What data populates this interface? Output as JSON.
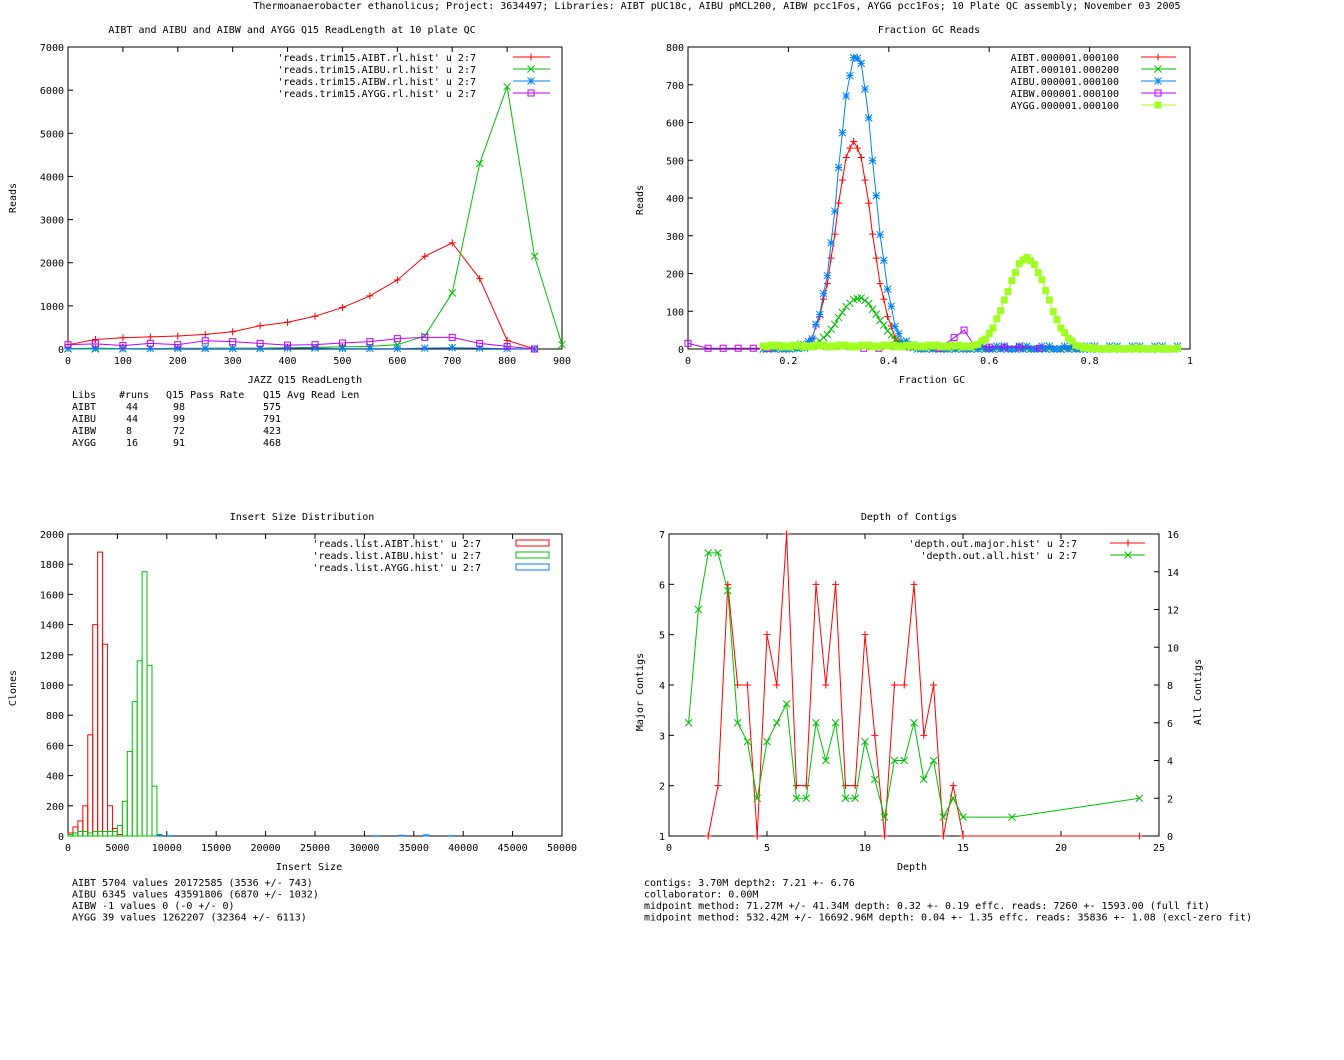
{
  "page": {
    "title": "Thermoanaerobacter ethanolicus; Project: 3634497; Libraries: AIBT pUC18c, AIBU pMCL200, AIBW pcc1Fos, AYGG pcc1Fos; 10 Plate QC assembly; November 03 2005"
  },
  "colors": {
    "red": "#ff0000",
    "green": "#00c000",
    "blue": "#0080ff",
    "magenta": "#c000ff",
    "lime": "#a0ff20"
  },
  "chart_data": [
    {
      "type": "line",
      "title": "AIBT and AIBU and AIBW and AYGG Q15 ReadLength at 10 plate QC",
      "xlabel": "JAZZ Q15 ReadLength",
      "ylabel": "Reads",
      "xlim": [
        0,
        900
      ],
      "ylim": [
        0,
        7000
      ],
      "xticks": [
        "0",
        "100",
        "200",
        "300",
        "400",
        "500",
        "600",
        "700",
        "800",
        "900"
      ],
      "yticks": [
        "0",
        "1000",
        "2000",
        "3000",
        "4000",
        "5000",
        "6000",
        "7000"
      ],
      "series": [
        {
          "name": "'reads.trim15.AIBT.rl.hist' u 2:7",
          "color": "#ff0000",
          "marker": "plus",
          "x": [
            0,
            50,
            100,
            150,
            200,
            250,
            300,
            350,
            400,
            450,
            500,
            550,
            600,
            650,
            700,
            750,
            800,
            850
          ],
          "y": [
            100,
            220,
            260,
            280,
            300,
            340,
            400,
            540,
            620,
            760,
            960,
            1230,
            1600,
            2150,
            2460,
            1630,
            200,
            0
          ]
        },
        {
          "name": "'reads.trim15.AIBU.rl.hist' u 2:7",
          "color": "#00c000",
          "marker": "cross",
          "x": [
            0,
            50,
            100,
            150,
            200,
            250,
            300,
            350,
            400,
            450,
            500,
            550,
            600,
            650,
            700,
            750,
            800,
            850,
            900
          ],
          "y": [
            0,
            0,
            0,
            10,
            10,
            20,
            20,
            20,
            30,
            40,
            50,
            60,
            100,
            300,
            1300,
            4300,
            6080,
            2150,
            100
          ]
        },
        {
          "name": "'reads.trim15.AIBW.rl.hist' u 2:7",
          "color": "#0080ff",
          "marker": "star",
          "x": [
            0,
            50,
            100,
            150,
            200,
            250,
            300,
            350,
            400,
            450,
            500,
            550,
            600,
            650,
            700,
            750,
            800,
            850
          ],
          "y": [
            10,
            20,
            10,
            10,
            20,
            10,
            10,
            10,
            20,
            20,
            10,
            10,
            10,
            20,
            30,
            20,
            10,
            0
          ]
        },
        {
          "name": "'reads.trim15.AYGG.rl.hist' u 2:7",
          "color": "#c000ff",
          "marker": "square",
          "x": [
            0,
            50,
            100,
            150,
            200,
            250,
            300,
            350,
            400,
            450,
            500,
            550,
            600,
            650,
            700,
            750,
            800,
            850
          ],
          "y": [
            100,
            120,
            80,
            130,
            100,
            190,
            170,
            130,
            90,
            100,
            140,
            170,
            240,
            270,
            270,
            130,
            60,
            0
          ]
        }
      ],
      "table": {
        "header": [
          "Libs",
          "#runs",
          "Q15 Pass Rate",
          "Q15 Avg Read Len"
        ],
        "rows": [
          [
            "AIBT",
            "44",
            "98",
            "575"
          ],
          [
            "AIBU",
            "44",
            "99",
            "791"
          ],
          [
            "AIBW",
            "8",
            "72",
            "423"
          ],
          [
            "AYGG",
            "16",
            "91",
            "468"
          ]
        ]
      }
    },
    {
      "type": "scatter",
      "title": "Fraction GC Reads",
      "xlabel": "Fraction GC",
      "ylabel": "Reads",
      "xlim": [
        0,
        1
      ],
      "ylim": [
        0,
        800
      ],
      "xticks": [
        "0",
        "0.2",
        "0.4",
        "0.6",
        "0.8",
        "1"
      ],
      "yticks": [
        "0",
        "100",
        "200",
        "300",
        "400",
        "500",
        "600",
        "700",
        "800"
      ],
      "series": [
        {
          "name": "AIBT.000001.000100",
          "color": "#ff0000",
          "marker": "plus",
          "mode": "bell",
          "mu": 0.33,
          "sigma": 0.035,
          "amp": 550
        },
        {
          "name": "AIBT.000101.000200",
          "color": "#00c000",
          "marker": "cross",
          "mode": "bell",
          "mu": 0.34,
          "sigma": 0.04,
          "amp": 135
        },
        {
          "name": "AIBU.000001.000100",
          "color": "#0080ff",
          "marker": "star",
          "mode": "bell",
          "mu": 0.335,
          "sigma": 0.035,
          "amp": 780
        },
        {
          "name": "AIBW.000001.000100",
          "color": "#c000ff",
          "marker": "square",
          "mode": "points",
          "x": [
            0,
            0.04,
            0.07,
            0.1,
            0.13,
            0.16,
            0.35,
            0.38,
            0.5,
            0.53,
            0.55,
            0.57,
            0.6,
            0.63,
            0.66,
            0.7
          ],
          "y": [
            15,
            2,
            2,
            2,
            2,
            2,
            2,
            2,
            2,
            30,
            50,
            10,
            5,
            5,
            5,
            2
          ]
        },
        {
          "name": "AYGG.000001.000100",
          "color": "#a0ff20",
          "marker": "filledsquare",
          "mode": "bell",
          "mu": 0.675,
          "sigma": 0.04,
          "amp": 240,
          "base": 8
        }
      ]
    },
    {
      "type": "bar",
      "title": "Insert Size Distribution",
      "xlabel": "Insert Size",
      "ylabel": "Clones",
      "xlim": [
        0,
        50000
      ],
      "ylim": [
        0,
        2000
      ],
      "xticks": [
        "0",
        "5000",
        "10000",
        "15000",
        "20000",
        "25000",
        "30000",
        "35000",
        "40000",
        "45000",
        "50000"
      ],
      "yticks": [
        "0",
        "200",
        "400",
        "600",
        "800",
        "1000",
        "1200",
        "1400",
        "1600",
        "1800",
        "2000"
      ],
      "bin_width": 500,
      "series": [
        {
          "name": "'reads.list.AIBT.hist' u 2:7",
          "color": "#ff0000",
          "x": [
            0,
            500,
            1000,
            1500,
            2000,
            2500,
            3000,
            3500,
            4000,
            4500,
            5000
          ],
          "y": [
            20,
            60,
            100,
            200,
            670,
            1400,
            1880,
            1270,
            200,
            50,
            10
          ]
        },
        {
          "name": "'reads.list.AIBU.hist' u 2:7",
          "color": "#00c000",
          "x": [
            0,
            500,
            1000,
            1500,
            2000,
            2500,
            3000,
            3500,
            4000,
            4500,
            5000,
            5500,
            6000,
            6500,
            7000,
            7500,
            8000,
            8500,
            9000
          ],
          "y": [
            10,
            20,
            30,
            30,
            20,
            30,
            30,
            30,
            30,
            30,
            70,
            230,
            560,
            890,
            1160,
            1750,
            1130,
            330,
            10
          ]
        },
        {
          "name": "'reads.list.AYGG.hist' u 2:7",
          "color": "#0080ff",
          "x": [
            9000,
            10000,
            31000,
            33500,
            36000,
            38500
          ],
          "y": [
            5,
            2,
            2,
            5,
            8,
            2
          ]
        }
      ],
      "stats": [
        "AIBT 5704 values 20172585 (3536 +/- 743)",
        "AIBU 6345 values 43591806 (6870 +/- 1032)",
        "AIBW -1 values 0 (-0 +/- 0)",
        "AYGG 39 values 1262207 (32364 +/- 6113)"
      ]
    },
    {
      "type": "line",
      "title": "Depth of Contigs",
      "xlabel": "Depth",
      "ylabel": "Major Contigs",
      "y2label": "All Contigs",
      "xlim": [
        0,
        25
      ],
      "ylim": [
        1,
        7
      ],
      "y2lim": [
        0,
        16
      ],
      "xticks": [
        "0",
        "5",
        "10",
        "15",
        "20",
        "25"
      ],
      "yticks": [
        "1",
        "2",
        "3",
        "4",
        "5",
        "6",
        "7"
      ],
      "y2ticks": [
        "0",
        "2",
        "4",
        "6",
        "8",
        "10",
        "12",
        "14",
        "16"
      ],
      "series": [
        {
          "name": "'depth.out.major.hist' u 2:7",
          "color": "#ff0000",
          "marker": "plus",
          "axis": "y1",
          "x": [
            2,
            2.5,
            3,
            3.5,
            4,
            4.5,
            5,
            5.5,
            6,
            6.5,
            7,
            7.5,
            8,
            8.5,
            9,
            9.5,
            10,
            10.5,
            11,
            11.5,
            12,
            12.5,
            13,
            13.5,
            14,
            14.5,
            15,
            24
          ],
          "y": [
            1,
            2,
            6,
            4,
            4,
            1,
            5,
            4,
            7,
            2,
            2,
            6,
            4,
            6,
            2,
            2,
            5,
            3,
            1,
            4,
            4,
            6,
            3,
            4,
            1,
            2,
            1,
            1
          ]
        },
        {
          "name": "'depth.out.all.hist' u 2:7",
          "color": "#00c000",
          "marker": "cross",
          "axis": "y2",
          "x": [
            1,
            1.5,
            2,
            2.5,
            3,
            3.5,
            4,
            4.5,
            5,
            5.5,
            6,
            6.5,
            7,
            7.5,
            8,
            8.5,
            9,
            9.5,
            10,
            10.5,
            11,
            11.5,
            12,
            12.5,
            13,
            13.5,
            14,
            14.5,
            15,
            17.5,
            24
          ],
          "y": [
            6,
            12,
            15,
            15,
            13,
            6,
            5,
            2,
            5,
            6,
            7,
            2,
            2,
            6,
            4,
            6,
            2,
            2,
            5,
            3,
            1,
            4,
            4,
            6,
            3,
            4,
            1,
            2,
            1,
            1,
            2
          ]
        }
      ],
      "stats": [
        "contigs:      3.70M    depth2: 7.21 +- 6.76",
        "collaborator: 0.00M",
        "midpoint method: 71.27M +/- 41.34M   depth: 0.32 +- 0.19 effc. reads: 7260 +- 1593.00 (full fit)",
        "midpoint method: 532.42M +/- 16692.96M   depth: 0.04 +- 1.35 effc. reads: 35836 +- 1.08 (excl-zero fit)"
      ]
    }
  ]
}
